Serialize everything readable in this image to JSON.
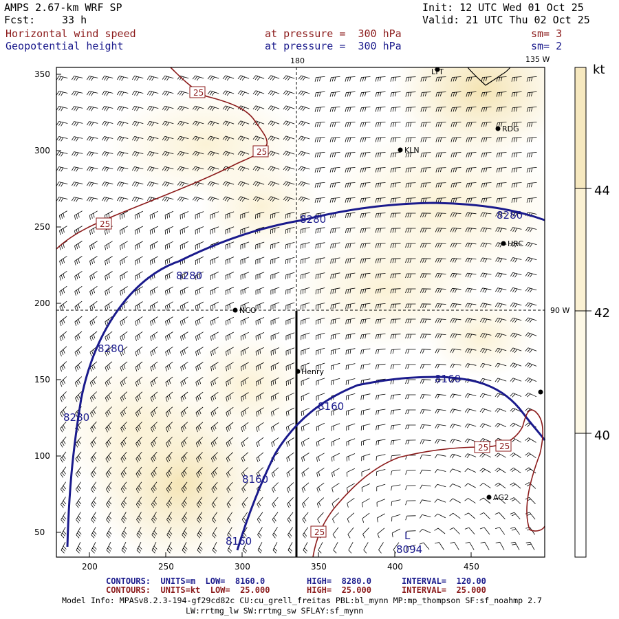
{
  "header": {
    "model": "AMPS 2.67-km WRF SP",
    "forecast_label": "Fcst:",
    "forecast_hours": "33 h",
    "init": "Init: 12 UTC Wed 01 Oct 25",
    "valid": "Valid: 21 UTC Thu 02 Oct 25",
    "field1": "Horizontal wind speed",
    "field1_level": "at pressure =  300 hPa",
    "field1_sm": "sm= 3",
    "field2": "Geopotential height",
    "field2_level": "at pressure =  300 hPa",
    "field2_sm": "sm= 2"
  },
  "map": {
    "x_ticks": [
      "200",
      "250",
      "300",
      "350",
      "400",
      "450"
    ],
    "y_ticks": [
      "350",
      "300",
      "250",
      "200",
      "150",
      "100",
      "50"
    ],
    "meridian_labels": [
      "180",
      "135 W",
      "90 W"
    ],
    "stations": [
      "LTT",
      "RDG",
      "KLN",
      "HRC",
      "NCO",
      "Henry",
      "AG2"
    ],
    "height_contour_labels": [
      "8280",
      "8280",
      "8280",
      "8280",
      "8280",
      "8160",
      "8160",
      "8160",
      "8160"
    ],
    "low_center": {
      "symbol": "L",
      "value": "8094"
    },
    "speed_contour_labels": [
      "25",
      "25",
      "25",
      "25",
      "25",
      "25"
    ],
    "colors": {
      "height": "#1a1a8c",
      "speed": "#8b1a1a",
      "shade_light": "#fbf3d9",
      "shade_mid": "#f6e8bf"
    }
  },
  "colorbar": {
    "unit": "kt",
    "labels": [
      "44",
      "42",
      "40"
    ]
  },
  "footer": {
    "line1_title": "CONTOURS:  UNITS=m  LOW=  8160.0",
    "line1_high": "HIGH=  8280.0",
    "line1_interval": "INTERVAL=  120.00",
    "line2_title": "CONTOURS:  UNITS=kt  LOW=  25.000",
    "line2_high": "HIGH=  25.000",
    "line2_interval": "INTERVAL=  25.000",
    "model_info": "Model Info: MPASv8.2.3-194-gf29cd82c CU:cu_grell_freitas PBL:bl_mynn MP:mp_thompson SF:sf_noahmp 2.7",
    "model_info2": "LW:rrtmg_lw SW:rrtmg_sw SFLAY:sf_mynn"
  }
}
